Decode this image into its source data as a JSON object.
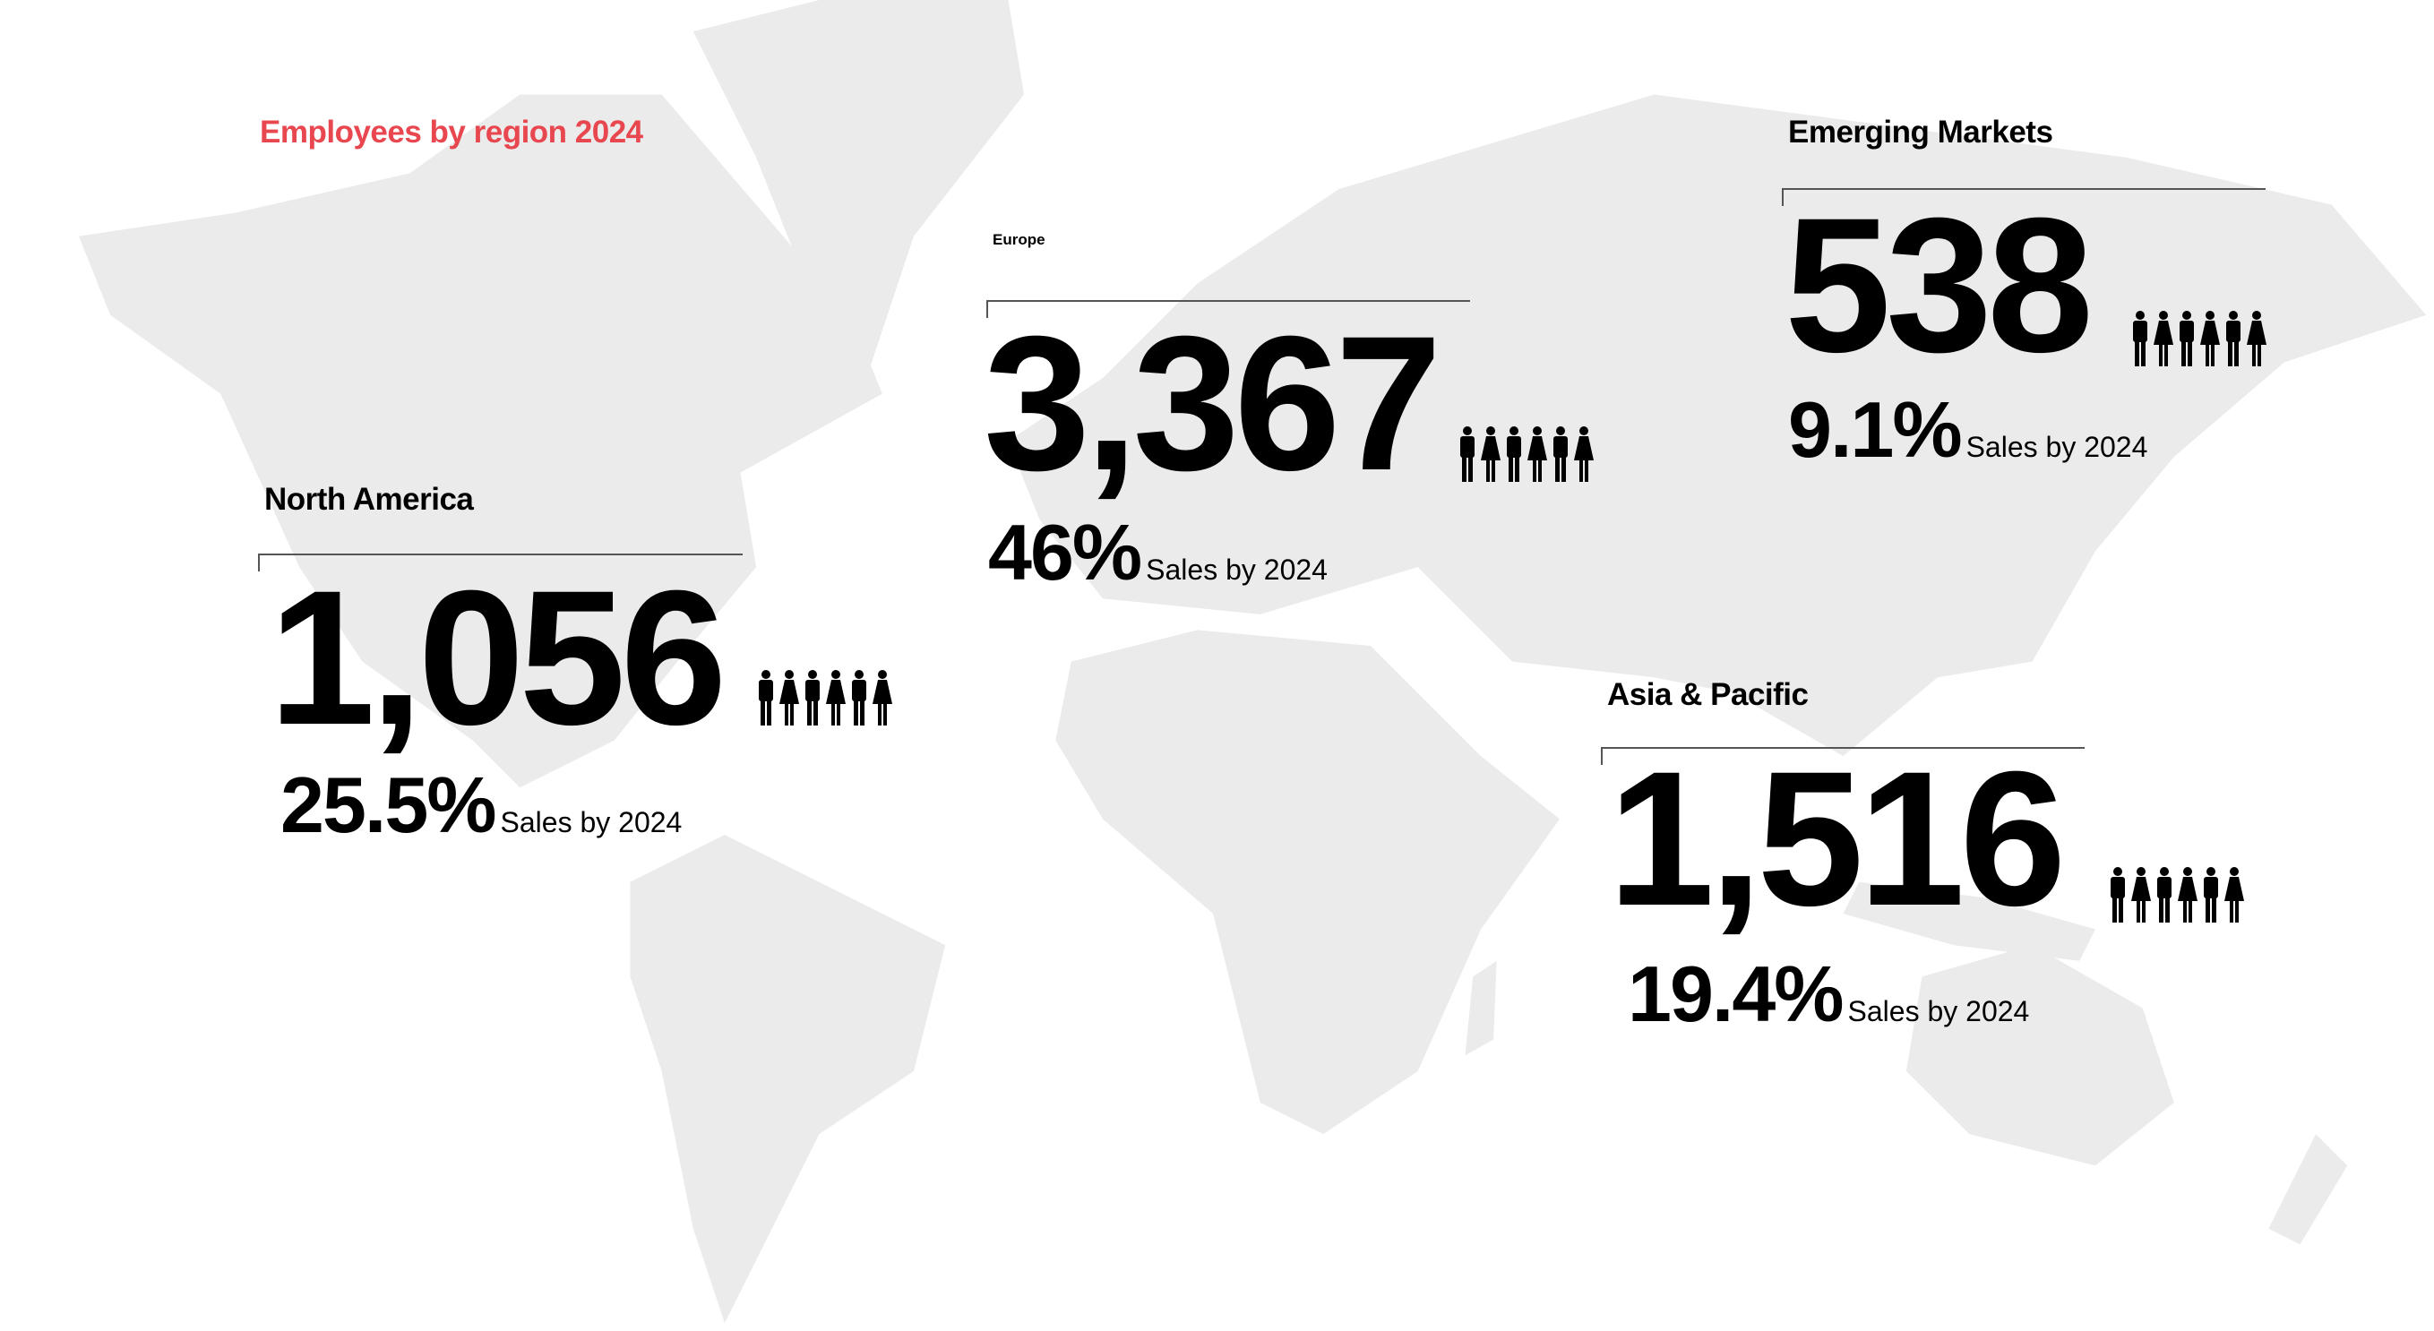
{
  "title": "Employees by region 2024",
  "accent_color": "#e8474f",
  "map_color": "#ebebeb",
  "people_icons": [
    "man-icon",
    "woman-icon",
    "man-icon",
    "woman-icon",
    "man-icon",
    "woman-icon"
  ],
  "regions": {
    "north_america": {
      "label": "North America",
      "employees": "1,056",
      "sales_pct": "25.5%",
      "sales_label": "Sales by 2024"
    },
    "europe": {
      "label": "Europe",
      "employees": "3,367",
      "sales_pct": "46%",
      "sales_label": "Sales by 2024"
    },
    "emerging_markets": {
      "label": "Emerging Markets",
      "employees": "538",
      "sales_pct": "9.1%",
      "sales_label": "Sales by 2024"
    },
    "asia_pacific": {
      "label": "Asia & Pacific",
      "employees": "1,516",
      "sales_pct": "19.4%",
      "sales_label": "Sales by 2024"
    }
  }
}
